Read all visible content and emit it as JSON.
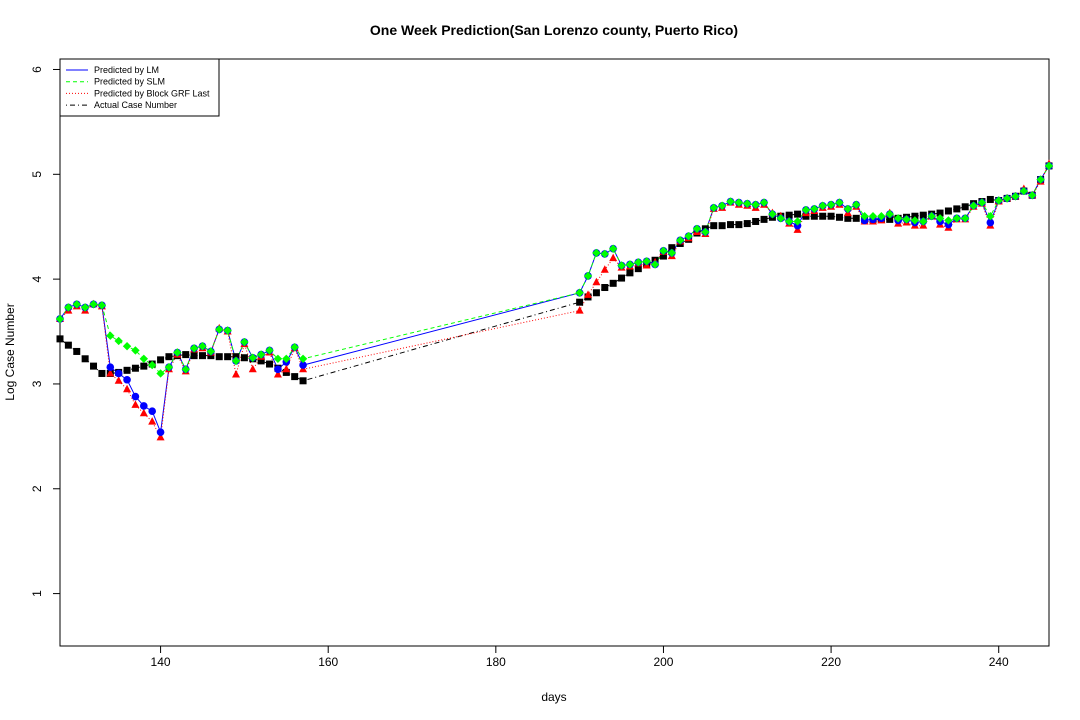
{
  "chart_data": {
    "type": "line",
    "title": "One Week Prediction(San Lorenzo county, Puerto Rico)",
    "xlabel": "days",
    "ylabel": "Log Case Number",
    "xlim": [
      128,
      246
    ],
    "ylim": [
      0.5,
      6.1
    ],
    "xticks": [
      140,
      160,
      180,
      200,
      220,
      240
    ],
    "yticks": [
      1,
      2,
      3,
      4,
      5,
      6
    ],
    "legend_position": "top-left",
    "grid": false,
    "series": [
      {
        "name": "Predicted by LM",
        "color": "#0000ff",
        "line_style": "solid",
        "marker": "circle",
        "x": [
          128,
          129,
          130,
          131,
          132,
          133,
          134,
          135,
          136,
          137,
          138,
          139,
          140,
          141,
          142,
          143,
          144,
          145,
          146,
          147,
          148,
          149,
          150,
          151,
          152,
          153,
          154,
          155,
          156,
          157,
          190,
          191,
          192,
          193,
          194,
          195,
          196,
          197,
          198,
          199,
          200,
          201,
          202,
          203,
          204,
          205,
          206,
          207,
          208,
          209,
          210,
          211,
          212,
          213,
          214,
          215,
          216,
          217,
          218,
          219,
          220,
          221,
          222,
          223,
          224,
          225,
          226,
          227,
          228,
          229,
          230,
          231,
          232,
          233,
          234,
          235,
          236,
          237,
          238,
          239,
          240,
          241,
          242,
          243,
          244,
          245,
          246
        ],
        "y": [
          3.62,
          3.73,
          3.76,
          3.73,
          3.76,
          3.75,
          3.16,
          3.1,
          3.04,
          2.88,
          2.79,
          2.74,
          2.54,
          3.16,
          3.3,
          3.14,
          3.34,
          3.36,
          3.31,
          3.52,
          3.51,
          3.22,
          3.4,
          3.25,
          3.28,
          3.32,
          3.14,
          3.21,
          3.35,
          3.18,
          3.87,
          4.03,
          4.25,
          4.24,
          4.29,
          4.13,
          4.14,
          4.16,
          4.17,
          4.14,
          4.27,
          4.25,
          4.37,
          4.41,
          4.48,
          4.45,
          4.68,
          4.7,
          4.74,
          4.73,
          4.72,
          4.71,
          4.73,
          4.62,
          4.58,
          4.55,
          4.51,
          4.66,
          4.67,
          4.7,
          4.71,
          4.73,
          4.67,
          4.71,
          4.56,
          4.57,
          4.58,
          4.62,
          4.56,
          4.57,
          4.54,
          4.55,
          4.6,
          4.55,
          4.52,
          4.58,
          4.58,
          4.7,
          4.73,
          4.54,
          4.75,
          4.77,
          4.79,
          4.84,
          4.8,
          4.95,
          5.08
        ]
      },
      {
        "name": "Predicted by SLM",
        "color": "#00ff00",
        "line_style": "dashed",
        "marker": "diamond",
        "x": [
          128,
          129,
          130,
          131,
          132,
          133,
          134,
          135,
          136,
          137,
          138,
          139,
          140,
          141,
          142,
          143,
          144,
          145,
          146,
          147,
          148,
          149,
          150,
          151,
          152,
          153,
          154,
          155,
          156,
          157,
          190,
          191,
          192,
          193,
          194,
          195,
          196,
          197,
          198,
          199,
          200,
          201,
          202,
          203,
          204,
          205,
          206,
          207,
          208,
          209,
          210,
          211,
          212,
          213,
          214,
          215,
          216,
          217,
          218,
          219,
          220,
          221,
          222,
          223,
          224,
          225,
          226,
          227,
          228,
          229,
          230,
          231,
          232,
          233,
          234,
          235,
          236,
          237,
          238,
          239,
          240,
          241,
          242,
          243,
          244,
          245,
          246
        ],
        "y": [
          3.62,
          3.73,
          3.76,
          3.73,
          3.76,
          3.75,
          3.46,
          3.41,
          3.36,
          3.32,
          3.24,
          3.18,
          3.1,
          3.16,
          3.3,
          3.14,
          3.34,
          3.36,
          3.31,
          3.52,
          3.51,
          3.22,
          3.4,
          3.25,
          3.28,
          3.32,
          3.24,
          3.24,
          3.35,
          3.24,
          3.87,
          4.03,
          4.25,
          4.24,
          4.29,
          4.13,
          4.14,
          4.16,
          4.17,
          4.14,
          4.27,
          4.25,
          4.37,
          4.41,
          4.48,
          4.45,
          4.68,
          4.7,
          4.74,
          4.73,
          4.72,
          4.71,
          4.73,
          4.62,
          4.58,
          4.55,
          4.55,
          4.66,
          4.67,
          4.7,
          4.71,
          4.73,
          4.67,
          4.71,
          4.6,
          4.6,
          4.6,
          4.62,
          4.58,
          4.57,
          4.56,
          4.55,
          4.6,
          4.58,
          4.56,
          4.58,
          4.58,
          4.7,
          4.73,
          4.6,
          4.75,
          4.77,
          4.79,
          4.84,
          4.8,
          4.95,
          5.08
        ]
      },
      {
        "name": "Predicted by Block GRF Last",
        "color": "#ff0000",
        "line_style": "dotted",
        "marker": "triangle",
        "x": [
          128,
          129,
          130,
          131,
          132,
          133,
          134,
          135,
          136,
          137,
          138,
          139,
          140,
          141,
          142,
          143,
          144,
          145,
          146,
          147,
          148,
          149,
          150,
          151,
          152,
          153,
          154,
          155,
          156,
          157,
          190,
          191,
          192,
          193,
          194,
          195,
          196,
          197,
          198,
          199,
          200,
          201,
          202,
          203,
          204,
          205,
          206,
          207,
          208,
          209,
          210,
          211,
          212,
          213,
          214,
          215,
          216,
          217,
          218,
          219,
          220,
          221,
          222,
          223,
          224,
          225,
          226,
          227,
          228,
          229,
          230,
          231,
          232,
          233,
          234,
          235,
          236,
          237,
          238,
          239,
          240,
          241,
          242,
          243,
          244,
          245,
          246
        ],
        "y": [
          3.62,
          3.7,
          3.74,
          3.7,
          3.76,
          3.74,
          3.1,
          3.03,
          2.95,
          2.8,
          2.72,
          2.64,
          2.49,
          3.14,
          3.28,
          3.12,
          3.33,
          3.34,
          3.3,
          3.53,
          3.5,
          3.09,
          3.38,
          3.14,
          3.26,
          3.3,
          3.09,
          3.14,
          3.34,
          3.14,
          3.7,
          3.85,
          3.97,
          4.09,
          4.2,
          4.11,
          4.12,
          4.15,
          4.13,
          4.16,
          4.26,
          4.22,
          4.36,
          4.39,
          4.45,
          4.43,
          4.67,
          4.68,
          4.73,
          4.71,
          4.7,
          4.68,
          4.71,
          4.63,
          4.6,
          4.53,
          4.47,
          4.63,
          4.65,
          4.68,
          4.69,
          4.71,
          4.63,
          4.69,
          4.55,
          4.55,
          4.56,
          4.63,
          4.53,
          4.54,
          4.51,
          4.51,
          4.6,
          4.52,
          4.49,
          4.57,
          4.57,
          4.69,
          4.72,
          4.51,
          4.74,
          4.77,
          4.79,
          4.86,
          4.8,
          4.93,
          5.1
        ]
      },
      {
        "name": "Actual Case Number",
        "color": "#000000",
        "line_style": "dotdash",
        "marker": "square",
        "x": [
          128,
          129,
          130,
          131,
          132,
          133,
          134,
          135,
          136,
          137,
          138,
          139,
          140,
          141,
          142,
          143,
          144,
          145,
          146,
          147,
          148,
          149,
          150,
          151,
          152,
          153,
          154,
          155,
          156,
          157,
          190,
          191,
          192,
          193,
          194,
          195,
          196,
          197,
          198,
          199,
          200,
          201,
          202,
          203,
          204,
          205,
          206,
          207,
          208,
          209,
          210,
          211,
          212,
          213,
          214,
          215,
          216,
          217,
          218,
          219,
          220,
          221,
          222,
          223,
          224,
          225,
          226,
          227,
          228,
          229,
          230,
          231,
          232,
          233,
          234,
          235,
          236,
          237,
          238,
          239,
          240,
          241,
          242,
          243,
          244,
          245,
          246
        ],
        "y": [
          3.43,
          3.37,
          3.31,
          3.24,
          3.17,
          3.1,
          3.1,
          3.11,
          3.13,
          3.15,
          3.17,
          3.19,
          3.23,
          3.26,
          3.27,
          3.28,
          3.27,
          3.27,
          3.27,
          3.26,
          3.26,
          3.26,
          3.25,
          3.24,
          3.22,
          3.19,
          3.15,
          3.11,
          3.07,
          3.03,
          3.78,
          3.83,
          3.87,
          3.92,
          3.96,
          4.01,
          4.06,
          4.1,
          4.14,
          4.18,
          4.22,
          4.3,
          4.34,
          4.38,
          4.44,
          4.48,
          4.51,
          4.51,
          4.52,
          4.52,
          4.53,
          4.55,
          4.57,
          4.59,
          4.6,
          4.61,
          4.62,
          4.6,
          4.6,
          4.6,
          4.6,
          4.59,
          4.58,
          4.58,
          4.57,
          4.57,
          4.57,
          4.57,
          4.58,
          4.59,
          4.6,
          4.61,
          4.62,
          4.63,
          4.65,
          4.67,
          4.69,
          4.72,
          4.74,
          4.76,
          4.75,
          4.77,
          4.79,
          4.84,
          4.8,
          4.95,
          5.08
        ]
      }
    ]
  }
}
